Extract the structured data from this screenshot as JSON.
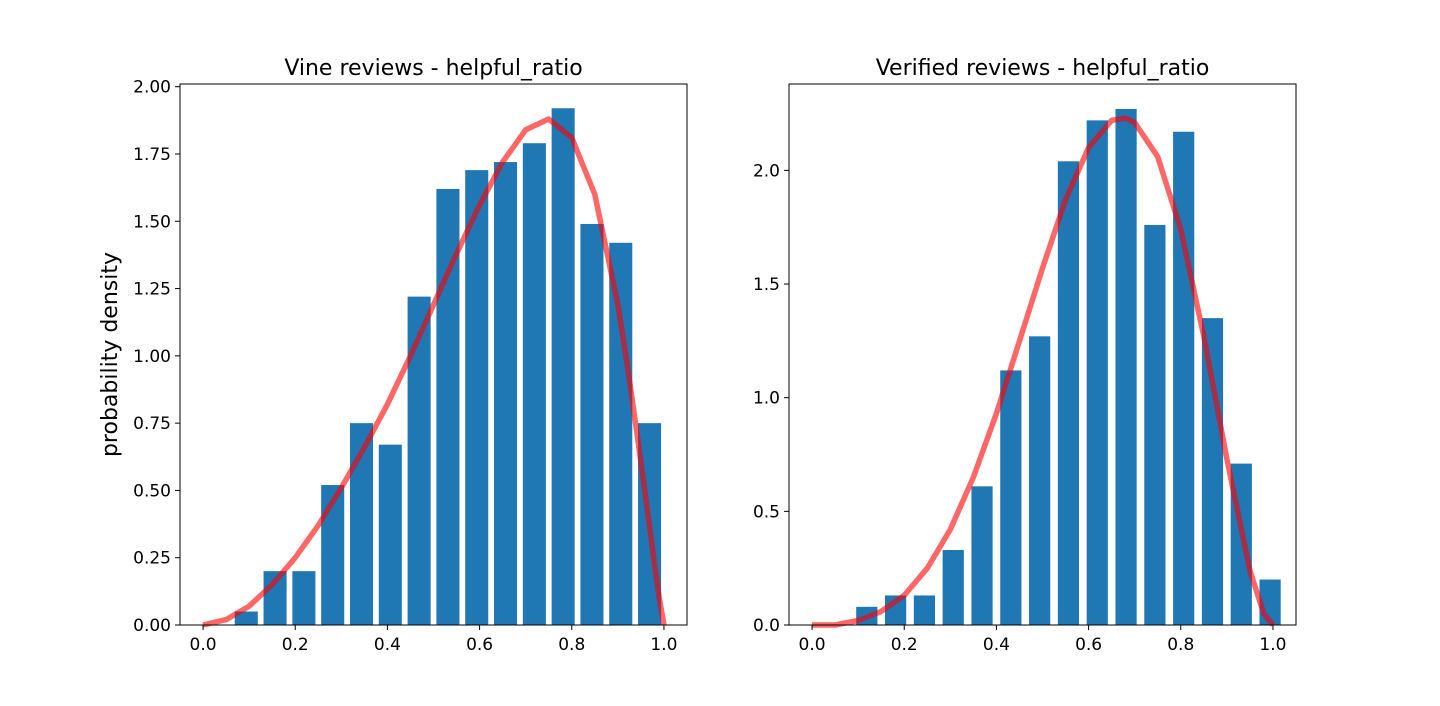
{
  "chart_data": [
    {
      "type": "bar",
      "title": "Vine reviews - helpful_ratio",
      "xlabel": "",
      "ylabel": "probability density",
      "xlim": [
        -0.05,
        1.05
      ],
      "ylim": [
        0,
        2.01
      ],
      "xticks": [
        0.0,
        0.2,
        0.4,
        0.6,
        0.8,
        1.0
      ],
      "xtick_labels": [
        "0.0",
        "0.2",
        "0.4",
        "0.6",
        "0.8",
        "1.0"
      ],
      "yticks": [
        0.0,
        0.25,
        0.5,
        0.75,
        1.0,
        1.25,
        1.5,
        1.75,
        2.0
      ],
      "ytick_labels": [
        "0.00",
        "0.25",
        "0.50",
        "0.75",
        "1.00",
        "1.25",
        "1.50",
        "1.75",
        "2.00"
      ],
      "bar_color": "#1f77b4",
      "curve_color": "#ff0000",
      "bars": {
        "x": [
          0.0938,
          0.1563,
          0.2188,
          0.2813,
          0.3438,
          0.4063,
          0.4688,
          0.5313,
          0.5938,
          0.6563,
          0.7188,
          0.7813,
          0.8438,
          0.9063,
          0.9688
        ],
        "width": 0.05,
        "values": [
          0.05,
          0.2,
          0.2,
          0.52,
          0.75,
          0.67,
          1.22,
          1.62,
          1.69,
          1.72,
          1.79,
          1.92,
          1.49,
          1.42,
          0.75
        ]
      },
      "curve": {
        "x": [
          0.0,
          0.05,
          0.1,
          0.15,
          0.2,
          0.25,
          0.3,
          0.35,
          0.4,
          0.45,
          0.5,
          0.55,
          0.6,
          0.65,
          0.7,
          0.75,
          0.8,
          0.85,
          0.9,
          0.92,
          0.94,
          0.96,
          0.98,
          0.99,
          1.0
        ],
        "y": [
          0.0,
          0.02,
          0.07,
          0.15,
          0.25,
          0.37,
          0.51,
          0.66,
          0.82,
          1.0,
          1.19,
          1.38,
          1.56,
          1.72,
          1.84,
          1.88,
          1.81,
          1.6,
          1.19,
          0.97,
          0.73,
          0.48,
          0.22,
          0.1,
          0.0
        ]
      }
    },
    {
      "type": "bar",
      "title": "Verified reviews - helpful_ratio",
      "xlabel": "",
      "ylabel": "",
      "xlim": [
        -0.05,
        1.05
      ],
      "ylim": [
        0,
        2.38
      ],
      "xticks": [
        0.0,
        0.2,
        0.4,
        0.6,
        0.8,
        1.0
      ],
      "xtick_labels": [
        "0.0",
        "0.2",
        "0.4",
        "0.6",
        "0.8",
        "1.0"
      ],
      "yticks": [
        0.0,
        0.5,
        1.0,
        1.5,
        2.0
      ],
      "ytick_labels": [
        "0.0",
        "0.5",
        "1.0",
        "1.5",
        "2.0"
      ],
      "bar_color": "#1f77b4",
      "curve_color": "#ff0000",
      "bars": {
        "x": [
          0.1188,
          0.1813,
          0.2438,
          0.3063,
          0.3688,
          0.4313,
          0.4938,
          0.5563,
          0.6188,
          0.6813,
          0.7438,
          0.8063,
          0.8688,
          0.9313,
          0.9938
        ],
        "width": 0.046,
        "values": [
          0.08,
          0.13,
          0.13,
          0.33,
          0.61,
          1.12,
          1.27,
          2.04,
          2.22,
          2.27,
          1.76,
          2.17,
          1.35,
          0.71,
          0.2
        ]
      },
      "curve": {
        "x": [
          0.0,
          0.05,
          0.1,
          0.15,
          0.2,
          0.25,
          0.3,
          0.35,
          0.4,
          0.45,
          0.5,
          0.55,
          0.6,
          0.65,
          0.68,
          0.7,
          0.75,
          0.8,
          0.85,
          0.9,
          0.95,
          0.98,
          1.0
        ],
        "y": [
          0.0,
          0.0,
          0.02,
          0.06,
          0.13,
          0.25,
          0.42,
          0.65,
          0.93,
          1.25,
          1.57,
          1.87,
          2.1,
          2.22,
          2.23,
          2.21,
          2.06,
          1.74,
          1.27,
          0.73,
          0.24,
          0.05,
          0.0
        ]
      }
    }
  ]
}
